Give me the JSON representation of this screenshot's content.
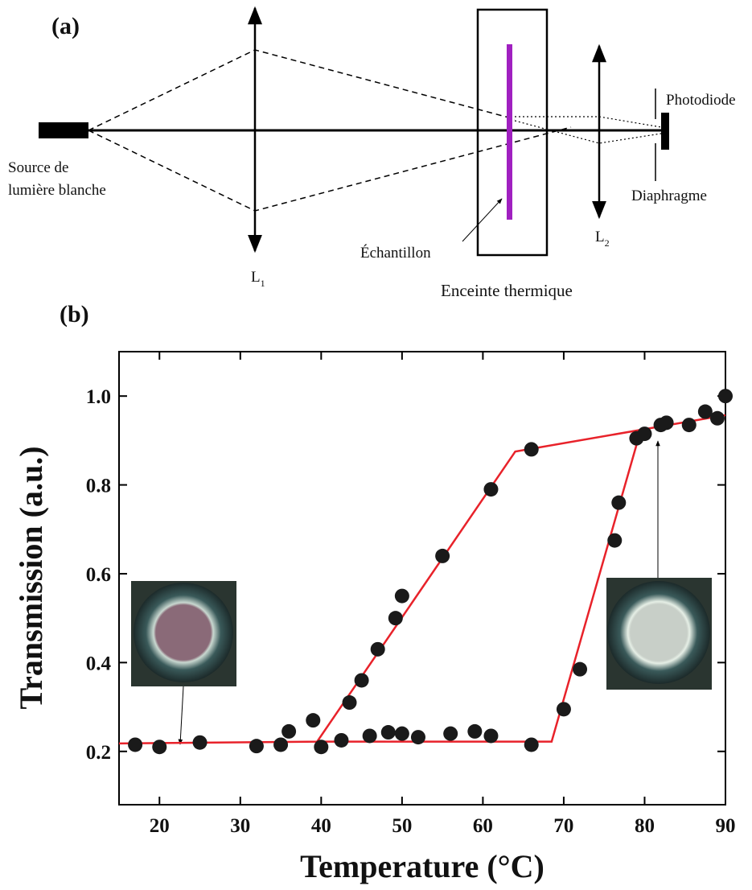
{
  "panel_a": {
    "label": "(a)",
    "source": [
      "Source de",
      "lumière blanche"
    ],
    "lens1": {
      "text": "L",
      "subscript": "1"
    },
    "sample": "Échantillon",
    "chamber": "Enceinte thermique",
    "lens2": {
      "text": "L",
      "subscript": "2"
    },
    "photodiode": "Photodiode",
    "diaphragm": "Diaphragme"
  },
  "chart_data": {
    "type": "scatter",
    "panel_label": "(b)",
    "x_label": "Temperature (°C)",
    "y_label": "Transmission (a.u.)",
    "xlim": [
      15,
      90
    ],
    "ylim": [
      0.08,
      1.1
    ],
    "xticks": [
      20,
      30,
      40,
      50,
      60,
      70,
      80,
      90
    ],
    "yticks": [
      0.2,
      0.4,
      0.6,
      0.8,
      {
        "value": 1,
        "label": "1.0"
      }
    ],
    "x": [
      17,
      20,
      25,
      32,
      35,
      36,
      39,
      40,
      42.5,
      43.5,
      45,
      46,
      47,
      48.3,
      49.2,
      50,
      50,
      52,
      55,
      56,
      59,
      61,
      61,
      66,
      66,
      70,
      72,
      76.3,
      76.8,
      79,
      80,
      82,
      82.7,
      85.5,
      87.5,
      89,
      90
    ],
    "series": [
      {
        "color": "#1a1a1a",
        "values": [
          0.215,
          0.21,
          0.22,
          0.212,
          0.215,
          0.245,
          0.27,
          0.21,
          0.225,
          0.31,
          0.36,
          0.235,
          0.43,
          0.243,
          0.5,
          0.55,
          0.24,
          0.232,
          0.64,
          0.24,
          0.245,
          0.79,
          0.235,
          0.88,
          0.215,
          0.295,
          0.385,
          0.675,
          0.76,
          0.905,
          0.915,
          0.935,
          0.94,
          0.935,
          0.965,
          0.95,
          1.0
        ]
      }
    ],
    "lines": [
      {
        "color": "#e8222a",
        "x": [
          15,
          39.5,
          64,
          90
        ],
        "values": [
          0.218,
          0.222,
          0.875,
          0.957
        ]
      },
      {
        "color": "#e8222a",
        "x": [
          39.5,
          68.5,
          79.5
        ],
        "values": [
          0.222,
          0.222,
          0.922
        ]
      }
    ]
  }
}
